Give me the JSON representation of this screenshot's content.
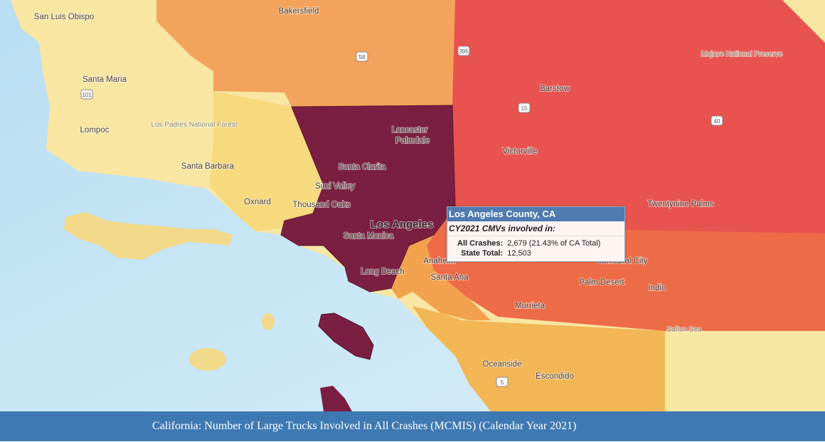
{
  "map": {
    "labels": [
      "San Luis Obispo",
      "Bakersfield",
      "Santa Maria",
      "Los Padres National Forest",
      "Lompoc",
      "Santa Barbara",
      "Lancaster",
      "Palmdale",
      "Santa Clarita",
      "Simi Valley",
      "Oxnard",
      "Thousand Oaks",
      "Los Angeles",
      "Santa Monica",
      "Long Beach",
      "Anaheim",
      "Santa Ana",
      "Victorville",
      "Barstow",
      "Mojave National Preserve",
      "Twentynine Palms",
      "Cathedral City",
      "Palm Desert",
      "Indio",
      "Murrieta",
      "Oceanside",
      "Escondido",
      "Salton Sea"
    ],
    "shields": [
      "58",
      "101",
      "395",
      "15",
      "40",
      "5"
    ]
  },
  "tooltip": {
    "title": "Los Angeles County, CA",
    "subtitle": "CY2021 CMVs involved in:",
    "rows": [
      [
        "All Crashes:",
        "2,679 (21.43% of CA Total)"
      ],
      [
        "State Total:",
        "12,503"
      ]
    ]
  },
  "caption": "California: Number of Large Trucks Involved in All Crashes (MCMIS) (Calendar Year 2021)"
}
